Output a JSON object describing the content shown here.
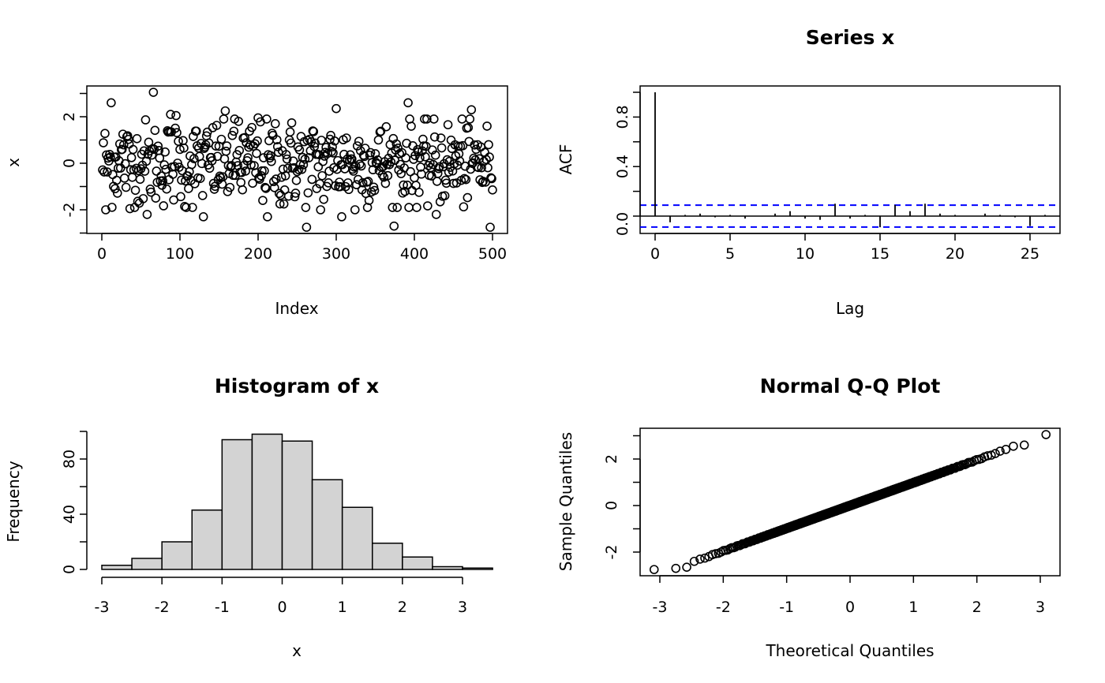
{
  "panels": {
    "series": {
      "title": "",
      "xlabel": "Index",
      "ylabel": "x"
    },
    "acf": {
      "title": "Series  x",
      "xlabel": "Lag",
      "ylabel": "ACF"
    },
    "hist": {
      "title": "Histogram of x",
      "xlabel": "x",
      "ylabel": "Frequency"
    },
    "qq": {
      "title": "Normal Q-Q Plot",
      "xlabel": "Theoretical Quantiles",
      "ylabel": "Sample Quantiles"
    }
  },
  "colors": {
    "axis": "#000000",
    "point": "#000000",
    "bar_fill": "#d3d3d3",
    "ci_line": "#0000ff"
  },
  "chart_data": [
    {
      "type": "scatter",
      "title": "",
      "xlabel": "Index",
      "ylabel": "x",
      "xlim": [
        0,
        500
      ],
      "ylim": [
        -3,
        3
      ],
      "xticks": [
        "0",
        "100",
        "200",
        "300",
        "400",
        "500"
      ],
      "yticks": [
        "-2",
        "0",
        "2"
      ],
      "n": 500,
      "series_sample": [
        {
          "x": 5,
          "y": -2.0
        },
        {
          "x": 12,
          "y": 2.6
        },
        {
          "x": 27,
          "y": 1.25
        },
        {
          "x": 36,
          "y": -1.95
        },
        {
          "x": 58,
          "y": -2.2
        },
        {
          "x": 66,
          "y": 3.05
        },
        {
          "x": 88,
          "y": 2.1
        },
        {
          "x": 95,
          "y": 2.05
        },
        {
          "x": 108,
          "y": -1.9
        },
        {
          "x": 130,
          "y": -2.3
        },
        {
          "x": 158,
          "y": 2.25
        },
        {
          "x": 175,
          "y": 1.8
        },
        {
          "x": 200,
          "y": 1.95
        },
        {
          "x": 212,
          "y": -2.3
        },
        {
          "x": 222,
          "y": 1.7
        },
        {
          "x": 233,
          "y": -1.75
        },
        {
          "x": 262,
          "y": -2.75
        },
        {
          "x": 280,
          "y": -2.0
        },
        {
          "x": 300,
          "y": 2.35
        },
        {
          "x": 307,
          "y": -2.3
        },
        {
          "x": 324,
          "y": -2.0
        },
        {
          "x": 374,
          "y": -2.7
        },
        {
          "x": 392,
          "y": 2.6
        },
        {
          "x": 428,
          "y": -2.2
        },
        {
          "x": 473,
          "y": 2.3
        },
        {
          "x": 497,
          "y": -2.75
        }
      ]
    },
    {
      "type": "bar",
      "title": "Series  x",
      "xlabel": "Lag",
      "ylabel": "ACF",
      "xlim": [
        0,
        26
      ],
      "ylim": [
        -0.1,
        1.0
      ],
      "xticks": [
        "0",
        "5",
        "10",
        "15",
        "20",
        "25"
      ],
      "yticks": [
        "0.0",
        "0.4",
        "0.8"
      ],
      "lags": [
        0,
        1,
        2,
        3,
        4,
        5,
        6,
        7,
        8,
        9,
        10,
        11,
        12,
        13,
        14,
        15,
        16,
        17,
        18,
        19,
        20,
        21,
        22,
        23,
        24,
        25,
        26
      ],
      "acf": [
        1.0,
        -0.05,
        0.01,
        0.02,
        -0.01,
        0.01,
        -0.02,
        0.0,
        0.02,
        0.04,
        -0.02,
        -0.03,
        0.1,
        -0.02,
        0.01,
        -0.09,
        0.09,
        0.04,
        0.1,
        0.02,
        0.01,
        0.0,
        0.02,
        0.01,
        -0.01,
        -0.08,
        0.01
      ],
      "ci": 0.088
    },
    {
      "type": "bar",
      "title": "Histogram of x",
      "xlabel": "x",
      "ylabel": "Frequency",
      "breaks": [
        -3,
        -2.5,
        -2,
        -1.5,
        -1,
        -0.5,
        0,
        0.5,
        1,
        1.5,
        2,
        2.5,
        3,
        3.5
      ],
      "counts": [
        3,
        8,
        20,
        43,
        94,
        98,
        93,
        65,
        45,
        19,
        9,
        2,
        1
      ],
      "xticks": [
        "-3",
        "-2",
        "-1",
        "0",
        "1",
        "2",
        "3"
      ],
      "yticks": [
        "0",
        "40",
        "80"
      ],
      "ylim": [
        0,
        100
      ]
    },
    {
      "type": "scatter",
      "title": "Normal Q-Q Plot",
      "xlabel": "Theoretical Quantiles",
      "ylabel": "Sample Quantiles",
      "xlim": [
        -3.1,
        3.1
      ],
      "ylim": [
        -2.75,
        3.05
      ],
      "xticks": [
        "-3",
        "-2",
        "-1",
        "0",
        "1",
        "2",
        "3"
      ],
      "yticks": [
        "-2",
        "0",
        "2"
      ],
      "n": 500,
      "extremes": [
        {
          "x": -3.09,
          "y": -2.75
        },
        {
          "x": -2.75,
          "y": -2.7
        },
        {
          "x": -2.58,
          "y": -2.65
        },
        {
          "x": 2.58,
          "y": 2.55
        },
        {
          "x": 2.75,
          "y": 2.6
        },
        {
          "x": 3.09,
          "y": 3.05
        }
      ]
    }
  ]
}
